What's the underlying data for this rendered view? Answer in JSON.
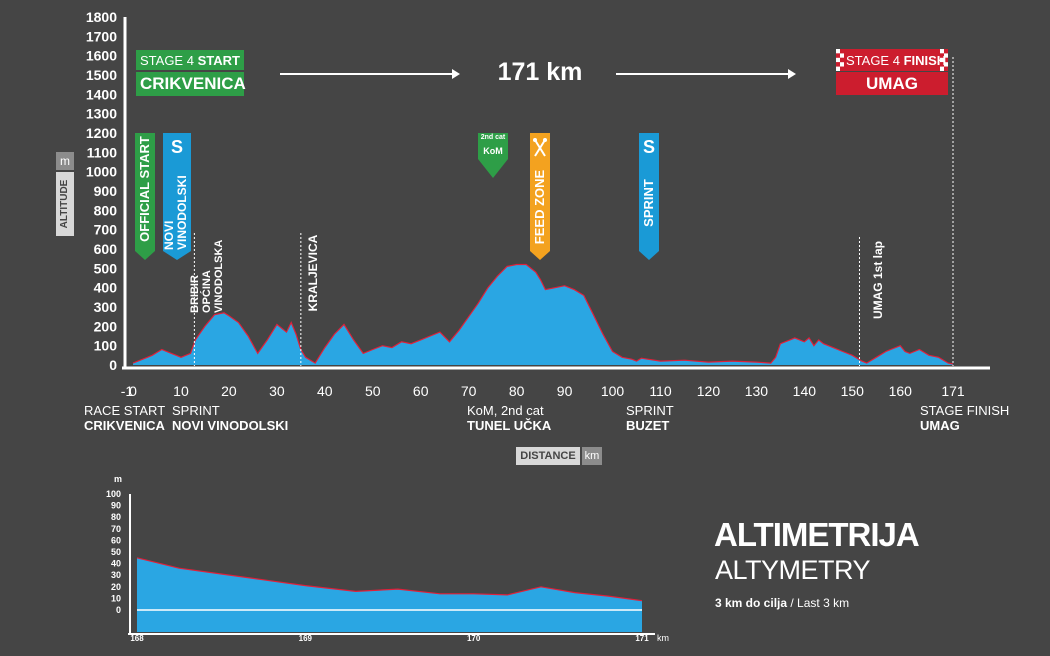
{
  "colors": {
    "background": "#454545",
    "profile_fill": "#2aa6e3",
    "profile_line": "#e0203a",
    "sprint": "#1a9ad6",
    "start": "#2e9e47",
    "finish": "#cc1d2e",
    "feed": "#f3a21f",
    "kom": "#2e9e47",
    "axis_badge": "#8c8c8c"
  },
  "header": {
    "start_box_line1_a": "STAGE 4 ",
    "start_box_line1_b": "START",
    "start_box_line2": "CRIKVENICA",
    "distance": "171 km",
    "finish_box_line1_a": "STAGE 4 ",
    "finish_box_line1_b": "FINISH",
    "finish_box_line2": "UMAG"
  },
  "axes": {
    "y_badge_unit": "m",
    "y_badge_label": "ALTITUDE",
    "x_badge_label": "DISTANCE",
    "x_badge_unit": "km"
  },
  "markers": {
    "official_start": "OFFICIAL START",
    "novi_s": "S",
    "novi_label": "NOVI VINODOLSKI",
    "kom_cat": "2nd cat",
    "kom_label": "KoM",
    "feed_icon": "fork-knife-icon",
    "feed_label": "FEED ZONE",
    "sprint_s": "S",
    "sprint_label": "SPRINT"
  },
  "places": {
    "bribir": "BRIBIR OPĆINA VINODOLSKA",
    "kraljevica": "KRALJEVICA",
    "umag_lap": "UMAG 1st lap"
  },
  "bottom_labels": {
    "race_start_a": "RACE START",
    "race_start_b": "CRIKVENICA",
    "sprint1_a": "SPRINT",
    "sprint1_b": "NOVI VINODOLSKI",
    "kom_a": "KoM, 2nd cat",
    "kom_b": "TUNEL UČKA",
    "sprint2_a": "SPRINT",
    "sprint2_b": "BUZET",
    "finish_a": "STAGE FINISH",
    "finish_b": "UMAG"
  },
  "altimetry": {
    "title": "ALTIMETRIJA",
    "subtitle": "ALTYMETRY",
    "caption_bold": "3 km do cilja",
    "caption_sep": " / ",
    "caption_light": "Last 3 km"
  },
  "chart_data": [
    {
      "type": "area",
      "x_ticks": [
        "-1",
        "0",
        "10",
        "20",
        "30",
        "40",
        "50",
        "60",
        "70",
        "80",
        "90",
        "100",
        "110",
        "120",
        "130",
        "140",
        "150",
        "160",
        "171"
      ],
      "y_ticks": [
        "0",
        "100",
        "200",
        "300",
        "400",
        "500",
        "600",
        "700",
        "800",
        "900",
        "1000",
        "1100",
        "1200",
        "1300",
        "1400",
        "1500",
        "1600",
        "1700",
        "1800"
      ],
      "xlim": [
        -1,
        171
      ],
      "ylim": [
        0,
        1800
      ],
      "xlabel": "DISTANCE km",
      "ylabel": "ALTITUDE m",
      "series": [
        {
          "x": [
            0,
            3,
            4,
            5,
            6,
            8,
            9,
            10,
            12,
            13,
            15,
            17,
            19,
            20,
            22,
            24,
            26,
            28,
            30,
            32,
            33,
            34,
            35,
            36,
            38,
            40,
            42,
            44,
            46,
            48,
            50,
            52,
            54,
            56,
            58,
            60,
            62,
            64,
            66,
            68,
            70,
            72,
            74,
            76,
            78,
            80,
            82,
            84,
            85,
            86,
            88,
            90,
            92,
            94,
            96,
            98,
            100,
            102,
            104,
            105,
            106,
            110,
            115,
            120,
            125,
            130,
            133,
            134,
            135,
            137,
            138,
            140,
            141,
            142,
            143,
            144,
            146,
            148,
            150,
            152,
            153,
            155,
            157,
            158,
            160,
            161,
            162,
            164,
            166,
            168,
            170,
            171
          ],
          "y": [
            10,
            40,
            50,
            65,
            80,
            60,
            50,
            40,
            60,
            130,
            200,
            260,
            270,
            255,
            220,
            150,
            60,
            130,
            210,
            170,
            220,
            160,
            80,
            40,
            10,
            90,
            160,
            210,
            130,
            60,
            80,
            100,
            90,
            120,
            110,
            130,
            150,
            170,
            120,
            180,
            250,
            320,
            400,
            460,
            510,
            520,
            520,
            480,
            440,
            390,
            400,
            410,
            390,
            360,
            260,
            160,
            70,
            40,
            30,
            20,
            35,
            20,
            25,
            15,
            20,
            15,
            10,
            40,
            110,
            130,
            140,
            120,
            140,
            100,
            130,
            110,
            90,
            70,
            50,
            20,
            10,
            40,
            70,
            80,
            100,
            70,
            60,
            80,
            50,
            40,
            10,
            5
          ]
        }
      ],
      "annotations": [
        "BRIBIR OPĆINA VINODOLSKA",
        "KRALJEVICA",
        "UMAG 1st lap",
        "OFFICIAL START",
        "NOVI VINODOLSKI",
        "FEED ZONE",
        "SPRINT",
        "KoM"
      ]
    },
    {
      "type": "area",
      "x_ticks": [
        "168",
        "169",
        "170",
        "171"
      ],
      "y_ticks": [
        "0",
        "10",
        "20",
        "30",
        "40",
        "50",
        "60",
        "70",
        "80",
        "90",
        "100"
      ],
      "xlim": [
        168,
        171
      ],
      "ylim": [
        0,
        100
      ],
      "xlabel": "km",
      "ylabel": "m",
      "series": [
        {
          "x": [
            168,
            168.25,
            168.5,
            168.75,
            169,
            169.3,
            169.55,
            169.8,
            170,
            170.2,
            170.4,
            170.6,
            170.8,
            171
          ],
          "y": [
            45,
            36,
            31,
            26,
            21,
            16,
            18,
            14,
            14,
            13,
            20,
            15,
            12,
            8
          ]
        }
      ]
    }
  ]
}
